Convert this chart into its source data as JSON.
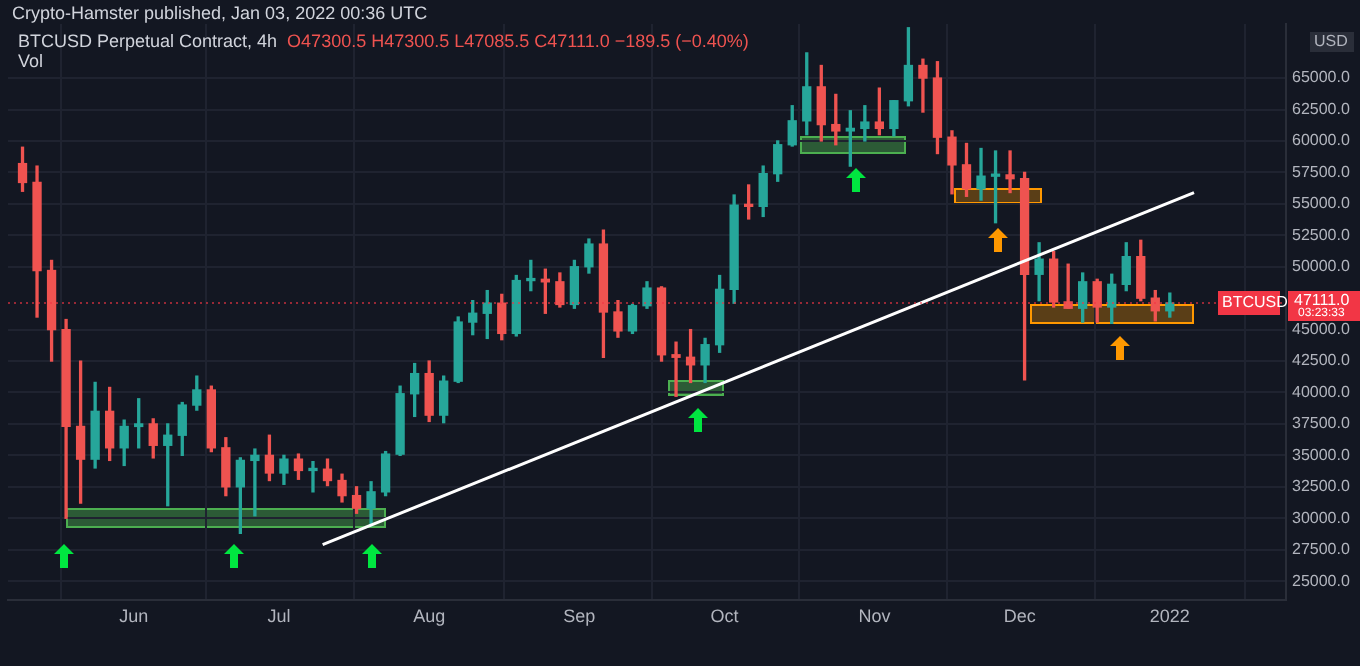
{
  "chart_data": {
    "type": "candlestick",
    "title": "Crypto-Hamster published, Jan 03, 2022 00:36 UTC",
    "subtitle": "BTCUSD Perpetual Contract, 4h",
    "annotations": [
      "O47300.5 H47300.5 L47085.5 C47111.0 −189.5 (−0.40%)",
      "Vol",
      "USD",
      "BTCUSD",
      "03:23:33"
    ],
    "x": [
      "2021-05-09",
      "2021-05-12",
      "2021-05-15",
      "2021-05-18",
      "2021-05-21",
      "2021-05-24",
      "2021-05-27",
      "2021-05-30",
      "2021-06-02",
      "2021-06-05",
      "2021-06-08",
      "2021-06-11",
      "2021-06-14",
      "2021-06-17",
      "2021-06-20",
      "2021-06-23",
      "2021-06-26",
      "2021-06-29",
      "2021-07-02",
      "2021-07-05",
      "2021-07-08",
      "2021-07-11",
      "2021-07-14",
      "2021-07-17",
      "2021-07-20",
      "2021-07-23",
      "2021-07-26",
      "2021-07-29",
      "2021-08-01",
      "2021-08-04",
      "2021-08-07",
      "2021-08-10",
      "2021-08-13",
      "2021-08-16",
      "2021-08-19",
      "2021-08-22",
      "2021-08-25",
      "2021-08-28",
      "2021-08-31",
      "2021-09-03",
      "2021-09-06",
      "2021-09-09",
      "2021-09-12",
      "2021-09-15",
      "2021-09-18",
      "2021-09-21",
      "2021-09-24",
      "2021-09-27",
      "2021-09-30",
      "2021-10-03",
      "2021-10-06",
      "2021-10-09",
      "2021-10-12",
      "2021-10-15",
      "2021-10-18",
      "2021-10-21",
      "2021-10-24",
      "2021-10-27",
      "2021-10-30",
      "2021-11-02",
      "2021-11-05",
      "2021-11-08",
      "2021-11-11",
      "2021-11-14",
      "2021-11-17",
      "2021-11-20",
      "2021-11-23",
      "2021-11-26",
      "2021-11-29",
      "2021-12-02",
      "2021-12-05",
      "2021-12-08",
      "2021-12-11",
      "2021-12-14",
      "2021-12-17",
      "2021-12-20",
      "2021-12-23",
      "2021-12-26",
      "2021-12-29",
      "2022-01-01"
    ],
    "ohlc": [
      [
        58200,
        59500,
        56000,
        56700
      ],
      [
        56700,
        58000,
        46000,
        49700
      ],
      [
        49700,
        50500,
        42500,
        45000
      ],
      [
        45000,
        45800,
        30000,
        37300
      ],
      [
        37300,
        42500,
        31200,
        34700
      ],
      [
        34700,
        40800,
        34000,
        38500
      ],
      [
        38500,
        40400,
        34600,
        35600
      ],
      [
        35600,
        37800,
        34200,
        37300
      ],
      [
        37300,
        39500,
        35600,
        37500
      ],
      [
        37500,
        37900,
        34800,
        35800
      ],
      [
        35800,
        37500,
        31000,
        36600
      ],
      [
        36600,
        39200,
        35000,
        39000
      ],
      [
        39000,
        41300,
        38600,
        40200
      ],
      [
        40200,
        40500,
        35300,
        35600
      ],
      [
        35600,
        36400,
        31800,
        32500
      ],
      [
        32500,
        34800,
        28800,
        34600
      ],
      [
        34600,
        35500,
        30200,
        35000
      ],
      [
        35000,
        36600,
        33000,
        33600
      ],
      [
        33600,
        35000,
        32700,
        34700
      ],
      [
        34700,
        35100,
        33100,
        33800
      ],
      [
        33800,
        34500,
        32100,
        33900
      ],
      [
        33900,
        34700,
        32600,
        33000
      ],
      [
        33000,
        33500,
        31300,
        31800
      ],
      [
        31800,
        32500,
        30400,
        30800
      ],
      [
        30800,
        32900,
        29400,
        32100
      ],
      [
        32100,
        35300,
        31800,
        35100
      ],
      [
        35100,
        40500,
        35000,
        39900
      ],
      [
        39900,
        42300,
        38100,
        41500
      ],
      [
        41500,
        42500,
        37700,
        38200
      ],
      [
        38200,
        41300,
        37600,
        40900
      ],
      [
        40900,
        46000,
        40800,
        45600
      ],
      [
        45600,
        47300,
        44600,
        46300
      ],
      [
        46300,
        48100,
        44300,
        47100
      ],
      [
        47100,
        47800,
        44200,
        44700
      ],
      [
        44700,
        49300,
        44500,
        48900
      ],
      [
        48900,
        50500,
        48100,
        49000
      ],
      [
        49000,
        49800,
        46300,
        48800
      ],
      [
        48800,
        49500,
        46800,
        47000
      ],
      [
        47000,
        50500,
        46700,
        50000
      ],
      [
        50000,
        52200,
        49500,
        51800
      ],
      [
        51800,
        52900,
        42800,
        46400
      ],
      [
        46400,
        47300,
        44400,
        44900
      ],
      [
        44900,
        47000,
        44700,
        46900
      ],
      [
        46900,
        48800,
        46700,
        48300
      ],
      [
        48300,
        48400,
        42500,
        43000
      ],
      [
        43000,
        44000,
        39700,
        42800
      ],
      [
        42800,
        45000,
        40800,
        42200
      ],
      [
        42200,
        44300,
        40800,
        43800
      ],
      [
        43800,
        49300,
        43200,
        48200
      ],
      [
        48200,
        55700,
        47100,
        54900
      ],
      [
        54900,
        56500,
        53800,
        54800
      ],
      [
        54800,
        58000,
        54000,
        57400
      ],
      [
        57400,
        60000,
        56800,
        59700
      ],
      [
        59700,
        62800,
        59600,
        61600
      ],
      [
        61600,
        67000,
        60500,
        64300
      ],
      [
        64300,
        66000,
        60000,
        61300
      ],
      [
        61300,
        63700,
        59700,
        60800
      ],
      [
        60800,
        62400,
        58000,
        61000
      ],
      [
        61000,
        62800,
        60000,
        61500
      ],
      [
        61500,
        64200,
        60500,
        61000
      ],
      [
        61000,
        63200,
        60400,
        63200
      ],
      [
        63200,
        69000,
        62800,
        66000
      ],
      [
        66000,
        66500,
        62300,
        65000
      ],
      [
        65000,
        66300,
        59000,
        60300
      ],
      [
        60300,
        60800,
        55800,
        58100
      ],
      [
        58100,
        59800,
        55600,
        56200
      ],
      [
        56200,
        59400,
        55300,
        57200
      ],
      [
        57200,
        59200,
        53500,
        57300
      ],
      [
        57300,
        59200,
        55900,
        57000
      ],
      [
        57000,
        57500,
        41000,
        49400
      ],
      [
        49400,
        51900,
        47300,
        50600
      ],
      [
        50600,
        51200,
        46800,
        47200
      ],
      [
        47200,
        50200,
        46700,
        46700
      ],
      [
        46700,
        49500,
        45600,
        48800
      ],
      [
        48800,
        49000,
        45600,
        46800
      ],
      [
        46800,
        49400,
        45500,
        48600
      ],
      [
        48600,
        51900,
        48100,
        50800
      ],
      [
        50800,
        52100,
        47300,
        47500
      ],
      [
        47500,
        48100,
        45700,
        46500
      ],
      [
        46500,
        47900,
        46000,
        47111
      ]
    ],
    "series": [
      {
        "type": "line",
        "color": "#ffffff",
        "x": [
          "2021-07-10",
          "2022-01-06"
        ],
        "values": [
          27900,
          55900
        ]
      }
    ],
    "ref_lines": [
      {
        "axis": "y",
        "value": 47111,
        "label": "47111.0",
        "color": "#f23645",
        "line_style": "dotted"
      }
    ],
    "xlim": [
      "2021-05-06",
      "2022-01-25"
    ],
    "xticks": [
      {
        "value": "2021-06-01",
        "label": "Jun"
      },
      {
        "value": "2021-07-01",
        "label": "Jul"
      },
      {
        "value": "2021-08-01",
        "label": "Aug"
      },
      {
        "value": "2021-09-01",
        "label": "Sep"
      },
      {
        "value": "2021-10-01",
        "label": "Oct"
      },
      {
        "value": "2021-11-01",
        "label": "Nov"
      },
      {
        "value": "2021-12-01",
        "label": "Dec"
      },
      {
        "value": "2022-01-01",
        "label": "2022"
      }
    ],
    "ylim": [
      23500,
      69300
    ],
    "yticks": [
      {
        "value": 25000,
        "label": "25000.0"
      },
      {
        "value": 27500,
        "label": "27500.0"
      },
      {
        "value": 30000,
        "label": "30000.0"
      },
      {
        "value": 32500,
        "label": "32500.0"
      },
      {
        "value": 35000,
        "label": "35000.0"
      },
      {
        "value": 37500,
        "label": "37500.0"
      },
      {
        "value": 40000,
        "label": "40000.0"
      },
      {
        "value": 42500,
        "label": "42500.0"
      },
      {
        "value": 45000,
        "label": "45000.0"
      },
      {
        "value": 50000,
        "label": "50000.0"
      },
      {
        "value": 52500,
        "label": "52500.0"
      },
      {
        "value": 55000,
        "label": "55000.0"
      },
      {
        "value": 57500,
        "label": "57500.0"
      },
      {
        "value": 60000,
        "label": "60000.0"
      },
      {
        "value": 62500,
        "label": "62500.0"
      },
      {
        "value": 65000,
        "label": "65000.0"
      }
    ],
    "grid": true,
    "legend": false
  }
}
